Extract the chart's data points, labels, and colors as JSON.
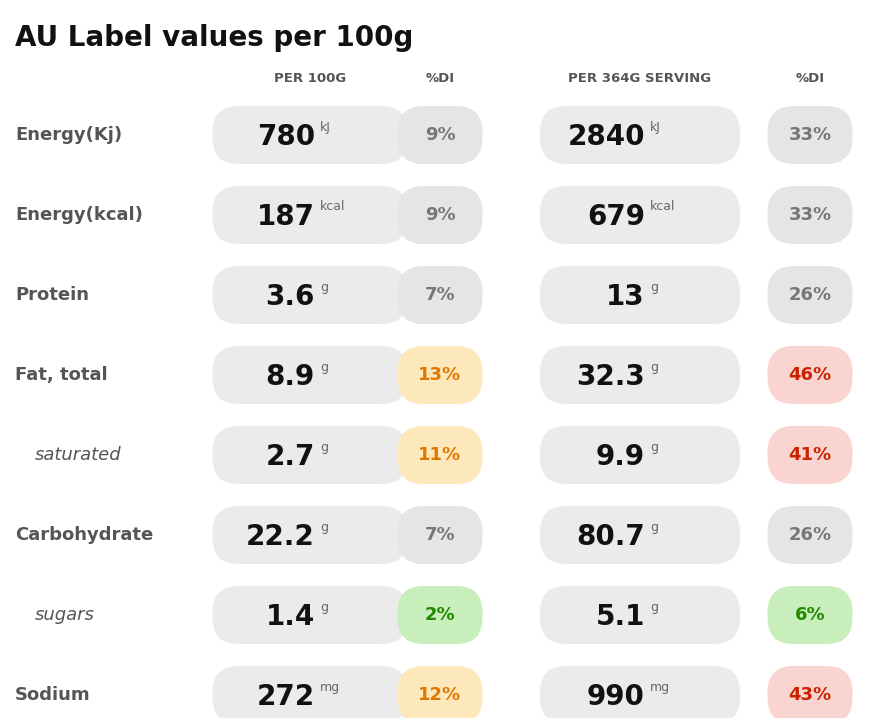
{
  "title": "AU Label values per 100g",
  "title_fontsize": 20,
  "background_color": "#ffffff",
  "col_headers": [
    "PER 100G",
    "%DI",
    "PER 364G SERVING",
    "%DI"
  ],
  "col_header_fontsize": 9.5,
  "rows": [
    {
      "label": "Energy(Kj)",
      "italic": false,
      "val100": "780",
      "unit100": "kJ",
      "di100": "9%",
      "di100_color": "#777777",
      "di100_bg": "#e5e5e5",
      "val364": "2840",
      "unit364": "kJ",
      "di364": "33%",
      "di364_color": "#777777",
      "di364_bg": "#e5e5e5"
    },
    {
      "label": "Energy(kcal)",
      "italic": false,
      "val100": "187",
      "unit100": "kcal",
      "di100": "9%",
      "di100_color": "#777777",
      "di100_bg": "#e5e5e5",
      "val364": "679",
      "unit364": "kcal",
      "di364": "33%",
      "di364_color": "#777777",
      "di364_bg": "#e5e5e5"
    },
    {
      "label": "Protein",
      "italic": false,
      "val100": "3.6",
      "unit100": "g",
      "di100": "7%",
      "di100_color": "#777777",
      "di100_bg": "#e5e5e5",
      "val364": "13",
      "unit364": "g",
      "di364": "26%",
      "di364_color": "#777777",
      "di364_bg": "#e5e5e5"
    },
    {
      "label": "Fat, total",
      "italic": false,
      "val100": "8.9",
      "unit100": "g",
      "di100": "13%",
      "di100_color": "#e07800",
      "di100_bg": "#fde8bb",
      "val364": "32.3",
      "unit364": "g",
      "di364": "46%",
      "di364_color": "#cc2200",
      "di364_bg": "#fad4d0"
    },
    {
      "label": "saturated",
      "italic": true,
      "val100": "2.7",
      "unit100": "g",
      "di100": "11%",
      "di100_color": "#e07800",
      "di100_bg": "#fde8bb",
      "val364": "9.9",
      "unit364": "g",
      "di364": "41%",
      "di364_color": "#cc2200",
      "di364_bg": "#fad4d0"
    },
    {
      "label": "Carbohydrate",
      "italic": false,
      "val100": "22.2",
      "unit100": "g",
      "di100": "7%",
      "di100_color": "#777777",
      "di100_bg": "#e5e5e5",
      "val364": "80.7",
      "unit364": "g",
      "di364": "26%",
      "di364_color": "#777777",
      "di364_bg": "#e5e5e5"
    },
    {
      "label": "sugars",
      "italic": true,
      "val100": "1.4",
      "unit100": "g",
      "di100": "2%",
      "di100_color": "#228800",
      "di100_bg": "#c8eebb",
      "val364": "5.1",
      "unit364": "g",
      "di364": "6%",
      "di364_color": "#228800",
      "di364_bg": "#c8eebb"
    },
    {
      "label": "Sodium",
      "italic": false,
      "val100": "272",
      "unit100": "mg",
      "di100": "12%",
      "di100_color": "#e07800",
      "di100_bg": "#fde8bb",
      "val364": "990",
      "unit364": "mg",
      "di364": "43%",
      "di364_color": "#cc2200",
      "di364_bg": "#fad4d0"
    }
  ],
  "val_box_bg": "#ebebeb",
  "val_fontsize": 20,
  "unit_fontsize": 9,
  "di_fontsize": 13,
  "label_fontsize": 13,
  "label_color": "#555555"
}
